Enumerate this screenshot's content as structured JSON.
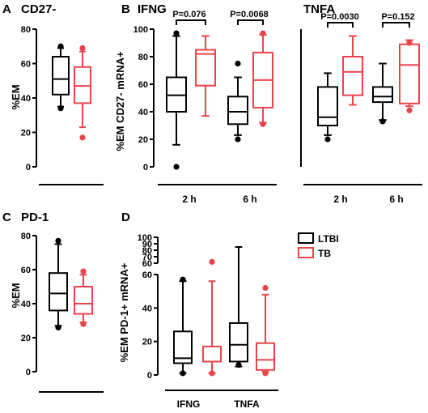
{
  "colors": {
    "LTBI": "#000000",
    "TB": "#e8454b"
  },
  "legend": {
    "ltbi": "LTBI",
    "tb": "TB"
  },
  "panels": {
    "A": {
      "letter": "A",
      "title": "CD27-",
      "ylabel": "%EM"
    },
    "B": {
      "letter": "B",
      "ylabel": "%EM CD27- mRNA+",
      "left_title": "IFNG",
      "right_title": "TNFA",
      "x_labels": [
        "2 h",
        "6 h"
      ],
      "p_values": [
        "P=0.076",
        "P=0.0068",
        "P=0.0030",
        "P=0.152"
      ]
    },
    "C": {
      "letter": "C",
      "title": "PD-1",
      "ylabel": "%EM"
    },
    "D": {
      "letter": "D",
      "ylabel": "%EM PD-1+ mRNA+",
      "x_labels": [
        "IFNG",
        "TNFA"
      ]
    }
  },
  "chart_data": [
    {
      "type": "box",
      "panel": "A",
      "title": "CD27-",
      "ylabel": "%EM",
      "ylim": [
        0,
        80
      ],
      "yticks": [
        0,
        20,
        40,
        60,
        80
      ],
      "series": [
        {
          "name": "LTBI",
          "stats": {
            "min": 35,
            "q1": 42,
            "median": 51,
            "q3": 64,
            "max": 69
          },
          "outliers": [
            34,
            70
          ]
        },
        {
          "name": "TB",
          "stats": {
            "min": 23,
            "q1": 37,
            "median": 47,
            "q3": 58,
            "max": 67
          },
          "outliers": [
            17,
            69
          ]
        }
      ]
    },
    {
      "type": "box",
      "panel": "B",
      "subtitle": "IFNG",
      "ylabel": "%EM CD27- mRNA+",
      "ylim": [
        0,
        100
      ],
      "yticks": [
        0,
        20,
        40,
        60,
        80,
        100
      ],
      "categories": [
        "2 h",
        "6 h"
      ],
      "series": [
        {
          "name": "LTBI",
          "stats": [
            {
              "min": 16,
              "q1": 40,
              "median": 52,
              "q3": 65,
              "max": 95
            },
            {
              "min": 23,
              "q1": 31,
              "median": 40,
              "q3": 51,
              "max": 65
            }
          ],
          "outliers": [
            [
              0,
              97
            ],
            [
              20,
              75
            ]
          ]
        },
        {
          "name": "TB",
          "stats": [
            {
              "min": 37,
              "q1": 59,
              "median": 82,
              "q3": 85,
              "max": 95
            },
            {
              "min": 32,
              "q1": 43,
              "median": 63,
              "q3": 83,
              "max": 96
            }
          ],
          "outliers": [
            [],
            [
              31,
              97
            ]
          ]
        }
      ],
      "p_values": [
        "P=0.076",
        "P=0.0068"
      ]
    },
    {
      "type": "box",
      "panel": "B",
      "subtitle": "TNFA",
      "ylim": [
        0,
        100
      ],
      "categories": [
        "2 h",
        "6 h"
      ],
      "series": [
        {
          "name": "LTBI",
          "stats": [
            {
              "min": 23,
              "q1": 30,
              "median": 36,
              "q3": 58,
              "max": 68
            },
            {
              "min": 34,
              "q1": 47,
              "median": 51,
              "q3": 58,
              "max": 75
            }
          ],
          "outliers": [
            [
              20
            ],
            [
              33
            ]
          ]
        },
        {
          "name": "TB",
          "stats": [
            {
              "min": 45,
              "q1": 52,
              "median": 69,
              "q3": 80,
              "max": 95
            },
            {
              "min": 44,
              "q1": 46,
              "median": 74,
              "q3": 89,
              "max": 92
            }
          ],
          "outliers": [
            [],
            [
              41,
              90
            ]
          ]
        }
      ],
      "p_values": [
        "P=0.0030",
        "P=0.152"
      ]
    },
    {
      "type": "box",
      "panel": "C",
      "title": "PD-1",
      "ylabel": "%EM",
      "ylim": [
        0,
        80
      ],
      "yticks": [
        0,
        20,
        40,
        60,
        80
      ],
      "series": [
        {
          "name": "LTBI",
          "stats": {
            "min": 27,
            "q1": 36,
            "median": 46,
            "q3": 58,
            "max": 75
          },
          "outliers": [
            26,
            77
          ]
        },
        {
          "name": "TB",
          "stats": {
            "min": 29,
            "q1": 34,
            "median": 40,
            "q3": 50,
            "max": 57
          },
          "outliers": [
            28,
            59
          ]
        }
      ]
    },
    {
      "type": "box",
      "panel": "D",
      "ylabel": "%EM PD-1+ mRNA+",
      "ylim": [
        0,
        100
      ],
      "axis_break": [
        60,
        60
      ],
      "yticks_lower": [
        0,
        20,
        40,
        60
      ],
      "yticks_upper": [
        60,
        70,
        80,
        90,
        100
      ],
      "categories": [
        "IFNG",
        "TNFA"
      ],
      "series": [
        {
          "name": "LTBI",
          "stats": [
            {
              "min": 1,
              "q1": 7,
              "median": 10,
              "q3": 26,
              "max": 56
            },
            {
              "min": 5,
              "q1": 8,
              "median": 18,
              "q3": 31,
              "max": 85
            }
          ],
          "outliers": [
            [
              1,
              57
            ],
            [
              6
            ]
          ]
        },
        {
          "name": "TB",
          "stats": [
            {
              "min": 1,
              "q1": 8,
              "median": 8,
              "q3": 17,
              "max": 56
            },
            {
              "min": 2,
              "q1": 3,
              "median": 9,
              "q3": 19,
              "max": 48
            }
          ],
          "outliers": [
            [
              1,
              62
            ],
            [
              1,
              52
            ]
          ]
        }
      ]
    }
  ]
}
